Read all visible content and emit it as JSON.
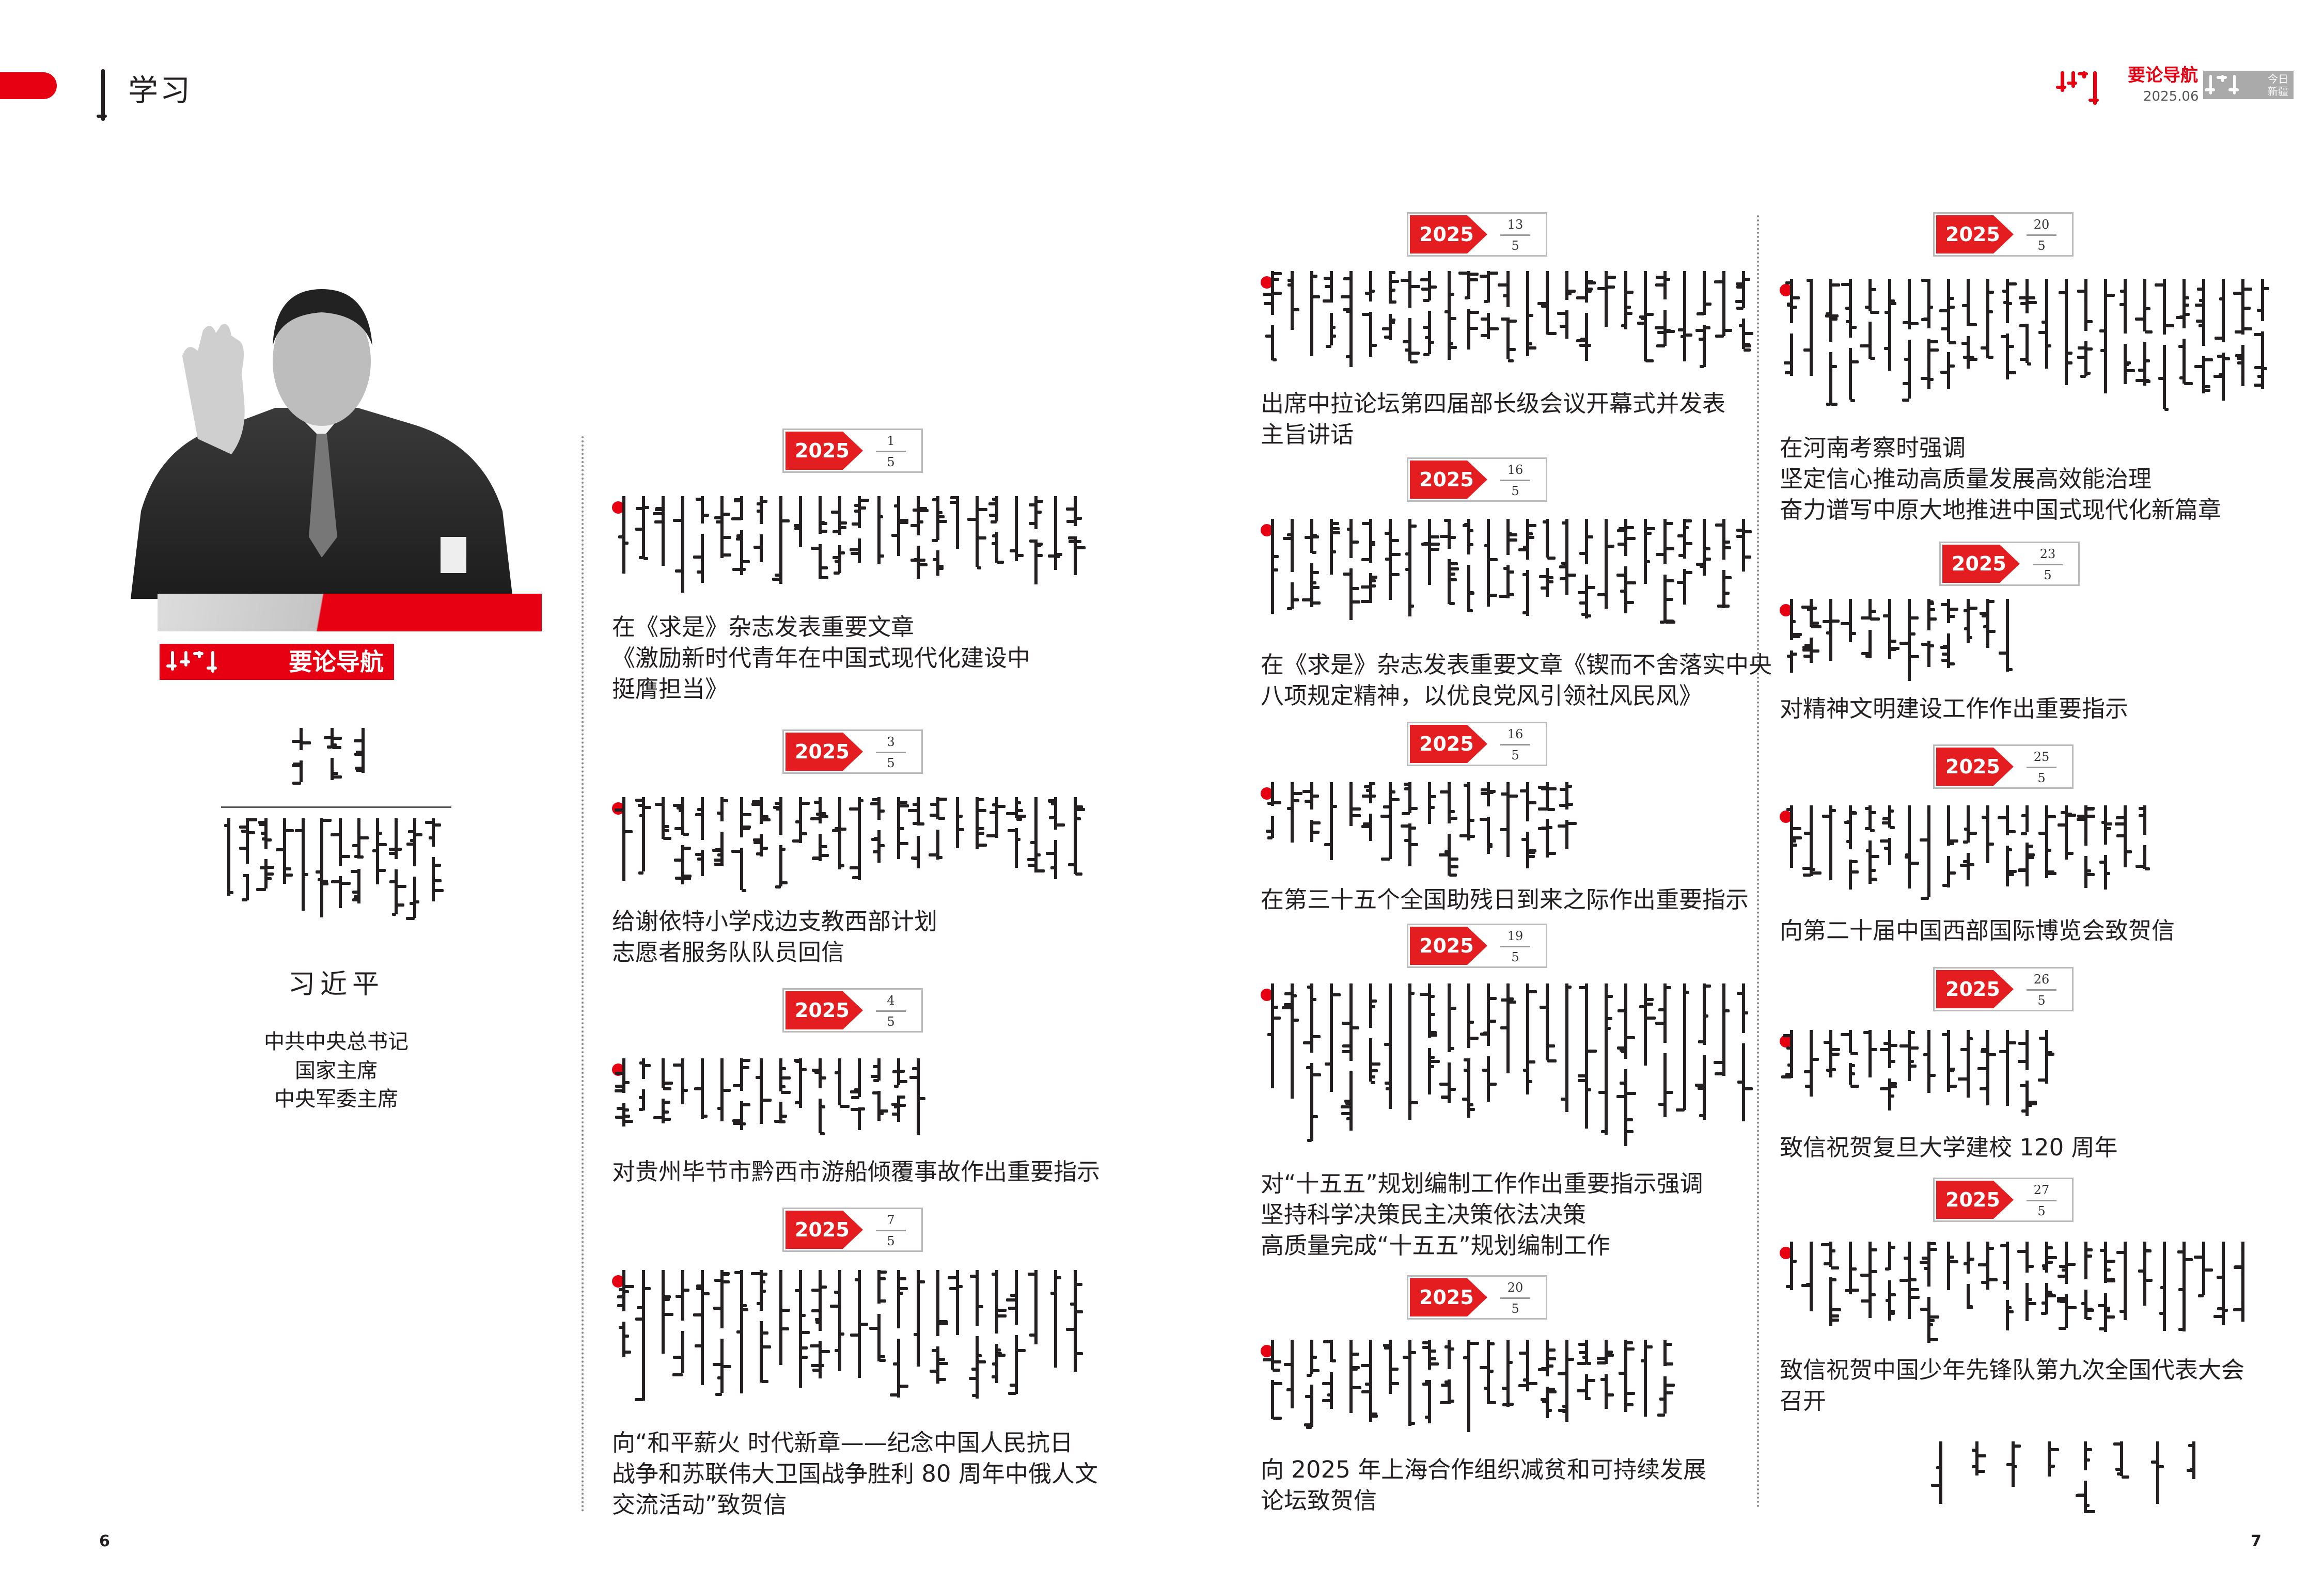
{
  "header": {
    "section_title": "学习",
    "brand_title": "要论导航",
    "issue_date": "2025.06",
    "magazine_name": "今日新疆"
  },
  "left_panel": {
    "label": "要论导航",
    "person_name": "习近平",
    "person_titles": [
      "中共中央总书记",
      "国家主席",
      "中央军委主席"
    ]
  },
  "colors": {
    "accent": "#e60012",
    "badge_red": "#e41e20",
    "gray_box": "#aaaaaa"
  },
  "columns": [
    [
      {
        "year": "2025",
        "day": "1",
        "month": "5",
        "title": [
          "在《求是》杂志发表重要文章",
          "《激励新时代青年在中国式现代化建设中",
          "挺膺担当》"
        ]
      },
      {
        "year": "2025",
        "day": "3",
        "month": "5",
        "title": [
          "给谢依特小学戍边支教西部计划",
          "志愿者服务队队员回信"
        ]
      },
      {
        "year": "2025",
        "day": "4",
        "month": "5",
        "title": [
          "对贵州毕节市黔西市游船倾覆事故作出重要指示"
        ]
      },
      {
        "year": "2025",
        "day": "7",
        "month": "5",
        "title": [
          "向“和平薪火  时代新章——纪念中国人民抗日",
          "战争和苏联伟大卫国战争胜利 80 周年中俄人文",
          "交流活动”致贺信"
        ]
      }
    ],
    [
      {
        "year": "2025",
        "day": "13",
        "month": "5",
        "title": [
          "出席中拉论坛第四届部长级会议开幕式并发表",
          "主旨讲话"
        ]
      },
      {
        "year": "2025",
        "day": "16",
        "month": "5",
        "title": [
          "在《求是》杂志发表重要文章《锲而不舍落实中央",
          "八项规定精神，以优良党风引领社风民风》"
        ]
      },
      {
        "year": "2025",
        "day": "16",
        "month": "5",
        "title": [
          "在第三十五个全国助残日到来之际作出重要指示"
        ]
      },
      {
        "year": "2025",
        "day": "19",
        "month": "5",
        "title": [
          "对“十五五”规划编制工作作出重要指示强调",
          "坚持科学决策民主决策依法决策",
          "高质量完成“十五五”规划编制工作"
        ]
      },
      {
        "year": "2025",
        "day": "20",
        "month": "5",
        "title": [
          "向 2025 年上海合作组织减贫和可持续发展",
          "论坛致贺信"
        ]
      }
    ],
    [
      {
        "year": "2025",
        "day": "20",
        "month": "5",
        "title": [
          "在河南考察时强调",
          "坚定信心推动高质量发展高效能治理",
          "奋力谱写中原大地推进中国式现代化新篇章"
        ]
      },
      {
        "year": "2025",
        "day": "23",
        "month": "5",
        "title": [
          "对精神文明建设工作作出重要指示"
        ]
      },
      {
        "year": "2025",
        "day": "25",
        "month": "5",
        "title": [
          "向第二十届中国西部国际博览会致贺信"
        ]
      },
      {
        "year": "2025",
        "day": "26",
        "month": "5",
        "title": [
          "致信祝贺复旦大学建校 120 周年"
        ]
      },
      {
        "year": "2025",
        "day": "27",
        "month": "5",
        "title": [
          "致信祝贺中国少年先锋队第九次全国代表大会",
          "召开"
        ]
      }
    ]
  ],
  "page_numbers": {
    "left": "6",
    "right": "7"
  }
}
